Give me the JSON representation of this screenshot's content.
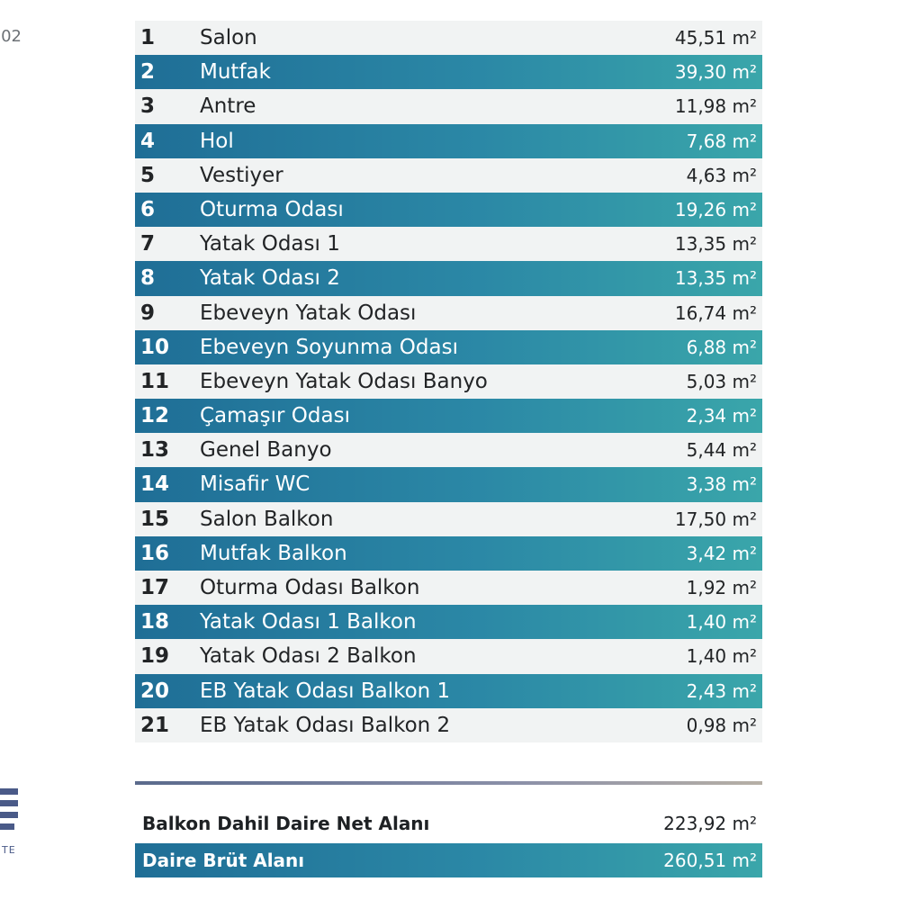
{
  "page_code": "02",
  "logo_text": "TE",
  "colors": {
    "dark_row_start": "#1f6e96",
    "dark_row_end": "#3aa6aa",
    "light_row": "#f1f3f3",
    "logo": "#4a5a88"
  },
  "rooms": [
    {
      "num": "1",
      "name": "Salon",
      "area": "45,51 m²"
    },
    {
      "num": "2",
      "name": "Mutfak",
      "area": "39,30 m²"
    },
    {
      "num": "3",
      "name": "Antre",
      "area": "11,98 m²"
    },
    {
      "num": "4",
      "name": "Hol",
      "area": "7,68 m²"
    },
    {
      "num": "5",
      "name": "Vestiyer",
      "area": "4,63 m²"
    },
    {
      "num": "6",
      "name": "Oturma Odası",
      "area": "19,26 m²"
    },
    {
      "num": "7",
      "name": "Yatak Odası 1",
      "area": "13,35 m²"
    },
    {
      "num": "8",
      "name": "Yatak Odası 2",
      "area": "13,35 m²"
    },
    {
      "num": "9",
      "name": "Ebeveyn Yatak Odası",
      "area": "16,74 m²"
    },
    {
      "num": "10",
      "name": "Ebeveyn Soyunma Odası",
      "area": "6,88 m²"
    },
    {
      "num": "11",
      "name": "Ebeveyn Yatak Odası Banyo",
      "area": "5,03 m²"
    },
    {
      "num": "12",
      "name": "Çamaşır Odası",
      "area": "2,34 m²"
    },
    {
      "num": "13",
      "name": "Genel Banyo",
      "area": "5,44 m²"
    },
    {
      "num": "14",
      "name": "Misafir WC",
      "area": "3,38 m²"
    },
    {
      "num": "15",
      "name": "Salon Balkon",
      "area": "17,50 m²"
    },
    {
      "num": "16",
      "name": "Mutfak Balkon",
      "area": "3,42 m²"
    },
    {
      "num": "17",
      "name": "Oturma Odası Balkon",
      "area": "1,92 m²"
    },
    {
      "num": "18",
      "name": "Yatak Odası 1 Balkon",
      "area": "1,40 m²"
    },
    {
      "num": "19",
      "name": "Yatak Odası 2 Balkon",
      "area": "1,40 m²"
    },
    {
      "num": "20",
      "name": "EB Yatak Odası Balkon 1",
      "area": "2,43 m²"
    },
    {
      "num": "21",
      "name": "EB Yatak Odası Balkon 2",
      "area": "0,98 m²"
    }
  ],
  "summary": {
    "net_label": "Balkon Dahil Daire Net Alanı",
    "net_value": "223,92 m²",
    "gross_label": "Daire Brüt Alanı",
    "gross_value": "260,51 m²"
  }
}
